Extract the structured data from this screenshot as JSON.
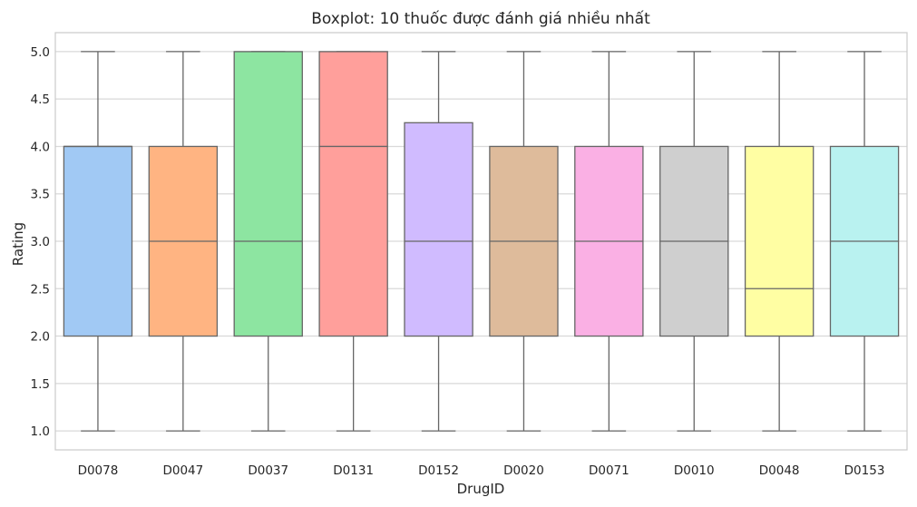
{
  "chart_data": {
    "type": "boxplot",
    "title": "Boxplot: 10 thuốc được đánh giá nhiều nhất",
    "xlabel": "DrugID",
    "ylabel": "Rating",
    "ylim": [
      0.8,
      5.2
    ],
    "yticks": [
      1.0,
      1.5,
      2.0,
      2.5,
      3.0,
      3.5,
      4.0,
      4.5,
      5.0
    ],
    "ytick_labels": [
      "1.0",
      "1.5",
      "2.0",
      "2.5",
      "3.0",
      "3.5",
      "4.0",
      "4.5",
      "5.0"
    ],
    "grid": true,
    "categories": [
      "D0078",
      "D0047",
      "D0037",
      "D0131",
      "D0152",
      "D0020",
      "D0071",
      "D0010",
      "D0048",
      "D0153"
    ],
    "boxes": [
      {
        "whisker_low": 1.0,
        "q1": 2.0,
        "median": 4.0,
        "q3": 4.0,
        "whisker_high": 5.0,
        "color": "#a1c9f4"
      },
      {
        "whisker_low": 1.0,
        "q1": 2.0,
        "median": 3.0,
        "q3": 4.0,
        "whisker_high": 5.0,
        "color": "#ffb482"
      },
      {
        "whisker_low": 1.0,
        "q1": 2.0,
        "median": 3.0,
        "q3": 5.0,
        "whisker_high": 5.0,
        "color": "#8de5a1"
      },
      {
        "whisker_low": 1.0,
        "q1": 2.0,
        "median": 4.0,
        "q3": 5.0,
        "whisker_high": 5.0,
        "color": "#ff9f9b"
      },
      {
        "whisker_low": 1.0,
        "q1": 2.0,
        "median": 3.0,
        "q3": 4.25,
        "whisker_high": 5.0,
        "color": "#d0bbff"
      },
      {
        "whisker_low": 1.0,
        "q1": 2.0,
        "median": 3.0,
        "q3": 4.0,
        "whisker_high": 5.0,
        "color": "#debb9b"
      },
      {
        "whisker_low": 1.0,
        "q1": 2.0,
        "median": 3.0,
        "q3": 4.0,
        "whisker_high": 5.0,
        "color": "#fab0e4"
      },
      {
        "whisker_low": 1.0,
        "q1": 2.0,
        "median": 3.0,
        "q3": 4.0,
        "whisker_high": 5.0,
        "color": "#cfcfcf"
      },
      {
        "whisker_low": 1.0,
        "q1": 2.0,
        "median": 2.5,
        "q3": 4.0,
        "whisker_high": 5.0,
        "color": "#fffea3"
      },
      {
        "whisker_low": 1.0,
        "q1": 2.0,
        "median": 3.0,
        "q3": 4.0,
        "whisker_high": 5.0,
        "color": "#b9f2f0"
      }
    ]
  }
}
